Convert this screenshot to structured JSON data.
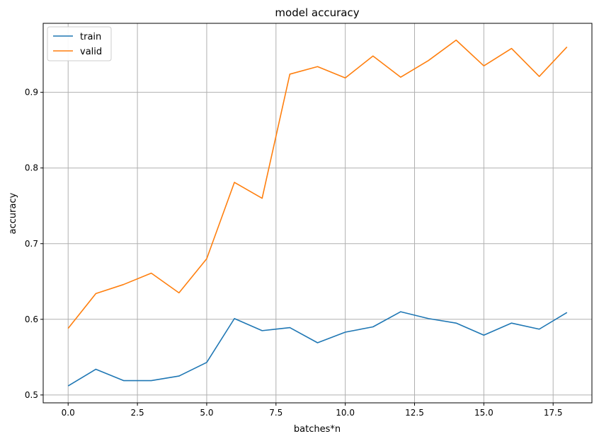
{
  "chart_data": {
    "type": "line",
    "title": "model accuracy",
    "xlabel": "batches*n",
    "ylabel": "accuracy",
    "xlim": [
      -0.9,
      18.9
    ],
    "ylim": [
      0.4896,
      0.9912
    ],
    "xticks": [
      0.0,
      2.5,
      5.0,
      7.5,
      10.0,
      12.5,
      15.0,
      17.5
    ],
    "xtick_labels": [
      "0.0",
      "2.5",
      "5.0",
      "7.5",
      "10.0",
      "12.5",
      "15.0",
      "17.5"
    ],
    "yticks": [
      0.5,
      0.6,
      0.7,
      0.8,
      0.9
    ],
    "ytick_labels": [
      "0.5",
      "0.6",
      "0.7",
      "0.8",
      "0.9"
    ],
    "grid": true,
    "legend_position": "top-left",
    "x": [
      0,
      1,
      2,
      3,
      4,
      5,
      6,
      7,
      8,
      9,
      10,
      11,
      12,
      13,
      14,
      15,
      16,
      17,
      18
    ],
    "series": [
      {
        "name": "train",
        "color": "#1f77b4",
        "values": [
          0.512,
          0.534,
          0.519,
          0.519,
          0.525,
          0.543,
          0.601,
          0.585,
          0.589,
          0.569,
          0.583,
          0.59,
          0.61,
          0.601,
          0.595,
          0.579,
          0.595,
          0.587,
          0.609
        ]
      },
      {
        "name": "valid",
        "color": "#ff7f0e",
        "values": [
          0.588,
          0.634,
          0.646,
          0.661,
          0.635,
          0.68,
          0.781,
          0.76,
          0.924,
          0.934,
          0.919,
          0.948,
          0.92,
          0.942,
          0.969,
          0.935,
          0.958,
          0.921,
          0.96
        ]
      }
    ]
  }
}
